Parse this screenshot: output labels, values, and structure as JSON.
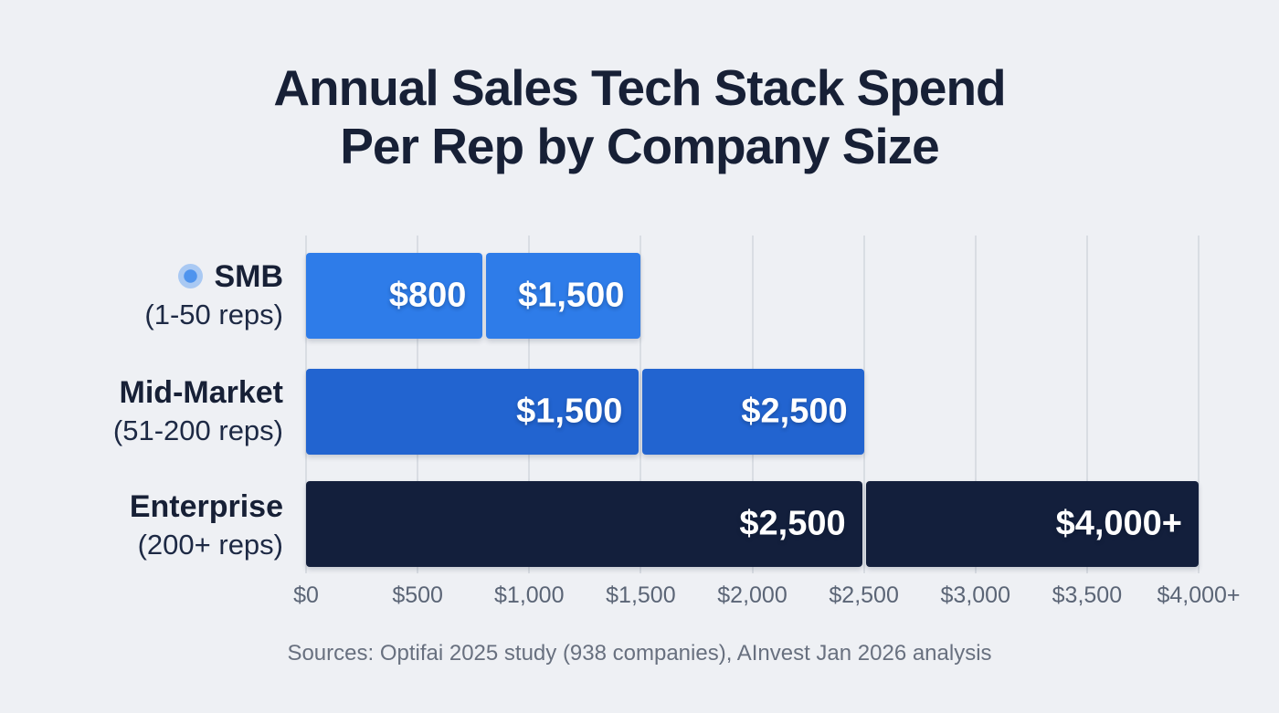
{
  "chart_data": {
    "type": "bar",
    "orientation": "horizontal",
    "title": "Annual Sales Tech Stack Spend Per Rep by Company Size",
    "title_lines": [
      "Annual Sales Tech Stack Spend",
      "Per Rep by Company Size"
    ],
    "xlabel": "",
    "ylabel": "",
    "xlim": [
      0,
      4000
    ],
    "grid": true,
    "legend": "none",
    "x_ticks": [
      "$0",
      "$500",
      "$1,000",
      "$1,500",
      "$2,000",
      "$2,500",
      "$3,000",
      "$3,500",
      "$4,000+"
    ],
    "x_tick_values": [
      0,
      500,
      1000,
      1500,
      2000,
      2500,
      3000,
      3500,
      4000
    ],
    "rows": [
      {
        "category": "SMB",
        "category_detail": "(1-50 reps)",
        "low_value": 800,
        "high_value": 1500,
        "low_label": "$800",
        "high_label": "$1,500",
        "bar_color": "#2e7ce9",
        "bullet_icon": true
      },
      {
        "category": "Mid-Market",
        "category_detail": "(51-200 reps)",
        "low_value": 1500,
        "high_value": 2500,
        "low_label": "$1,500",
        "high_label": "$2,500",
        "bar_color": "#2264d0",
        "bullet_icon": false
      },
      {
        "category": "Enterprise",
        "category_detail": "(200+ reps)",
        "low_value": 2500,
        "high_value": 4000,
        "low_label": "$2,500",
        "high_label": "$4,000+",
        "bar_color": "#131f3c",
        "bullet_icon": false
      }
    ],
    "footer": "Sources: Optifai 2025 study (938 companies), AInvest Jan 2026 analysis",
    "colors": {
      "background": "#eef0f4",
      "title": "#172036",
      "tick_label": "#5b6576",
      "footer": "#68707f",
      "gridline": "#d9dde3",
      "value_label": "#ffffff",
      "bullet_outer": "#a9c9f3",
      "bullet_inner": "#4f94ee"
    }
  }
}
